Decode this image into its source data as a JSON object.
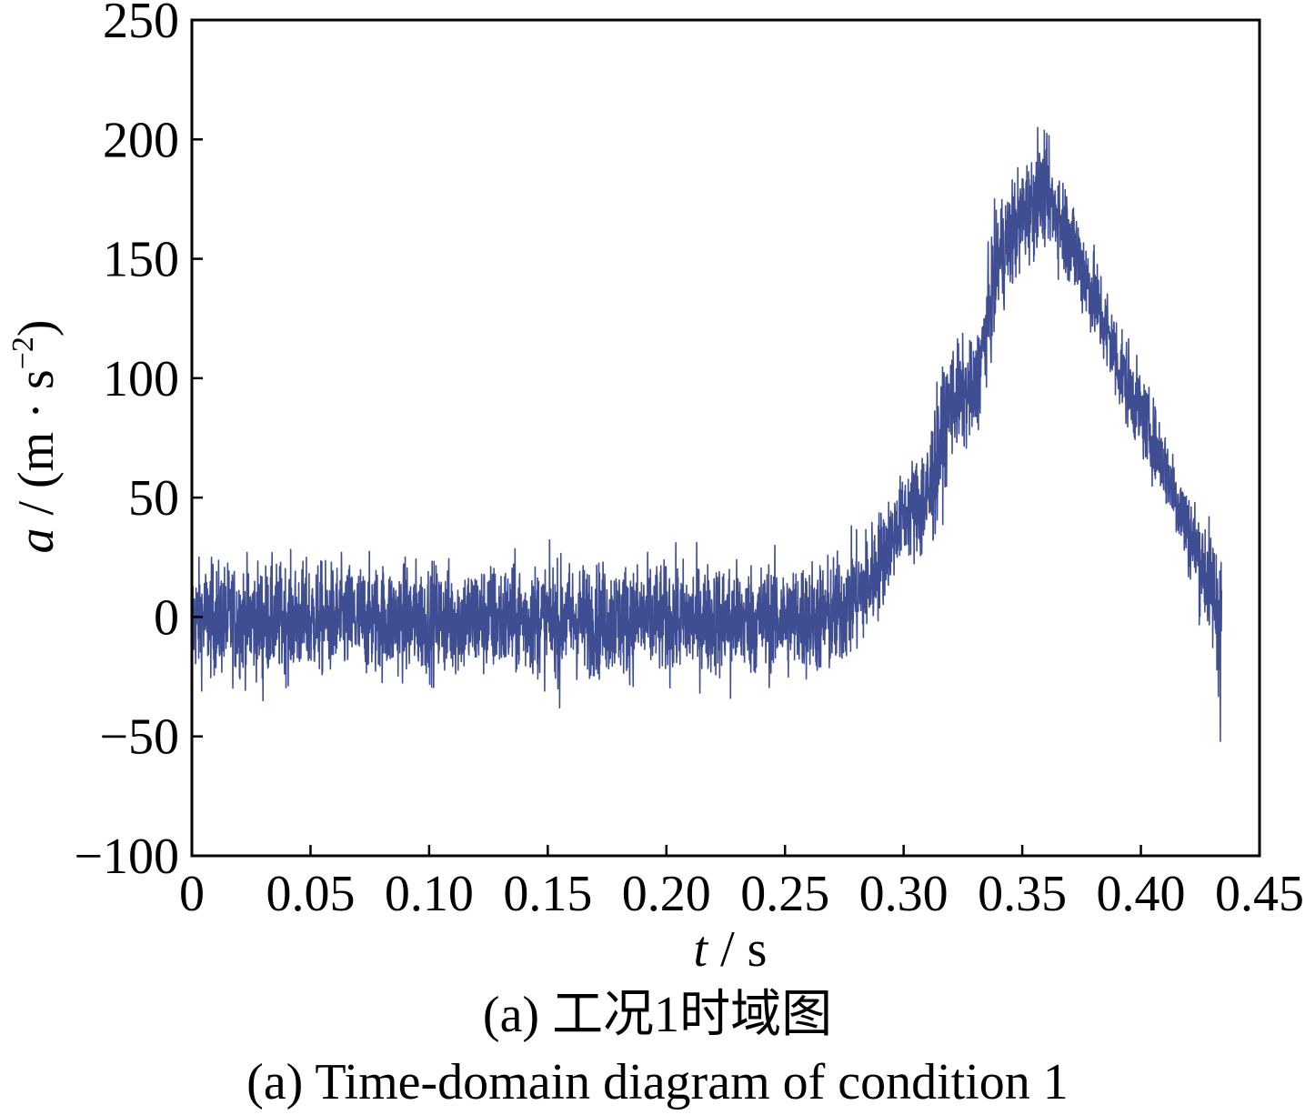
{
  "chart_data": {
    "type": "line",
    "title": "",
    "xlabel_var": "t",
    "xlabel_unit": " / s",
    "ylabel_var": "a",
    "ylabel_unit_pre": " / (m · s",
    "ylabel_unit_sup": "−2",
    "ylabel_unit_post": ")",
    "xlim": [
      0,
      0.45
    ],
    "ylim": [
      -100,
      250
    ],
    "x_ticks": [
      0,
      0.05,
      0.1,
      0.15,
      0.2,
      0.25,
      0.3,
      0.35,
      0.4,
      0.45
    ],
    "x_tick_labels": [
      "0",
      "0.05",
      "0.10",
      "0.15",
      "0.20",
      "0.25",
      "0.30",
      "0.35",
      "0.40",
      "0.45"
    ],
    "y_ticks": [
      -100,
      -50,
      0,
      50,
      100,
      150,
      200,
      250
    ],
    "y_tick_labels": [
      "−100",
      "−50",
      "0",
      "50",
      "100",
      "150",
      "200",
      "250"
    ],
    "grid": false,
    "series_color": "#3f4d93",
    "series": [
      {
        "name": "",
        "x_end": 0.434,
        "envelope": {
          "x": [
            0,
            0.05,
            0.1,
            0.15,
            0.2,
            0.25,
            0.27,
            0.285,
            0.3,
            0.31,
            0.32,
            0.33,
            0.34,
            0.35,
            0.36,
            0.37,
            0.38,
            0.39,
            0.4,
            0.41,
            0.42,
            0.43,
            0.434
          ],
          "upper": [
            20,
            20,
            20,
            20,
            20,
            20,
            22,
            35,
            58,
            75,
            112,
            112,
            172,
            188,
            196,
            178,
            152,
            125,
            100,
            78,
            52,
            35,
            30
          ],
          "lower": [
            -22,
            -22,
            -22,
            -22,
            -22,
            -22,
            -22,
            -8,
            28,
            22,
            70,
            75,
            128,
            148,
            160,
            140,
            118,
            90,
            70,
            50,
            20,
            -10,
            -35
          ]
        },
        "extremes": [
          {
            "x": 0.03,
            "y": -35
          },
          {
            "x": 0.155,
            "y": -38
          },
          {
            "x": 0.227,
            "y": 37
          },
          {
            "x": 0.227,
            "y": -34
          },
          {
            "x": 0.3565,
            "y": 205
          },
          {
            "x": 0.4335,
            "y": -52
          }
        ]
      }
    ]
  },
  "captions": {
    "chinese": "(a)  工况1时域图",
    "english": "(a)  Time-domain diagram of condition 1"
  }
}
